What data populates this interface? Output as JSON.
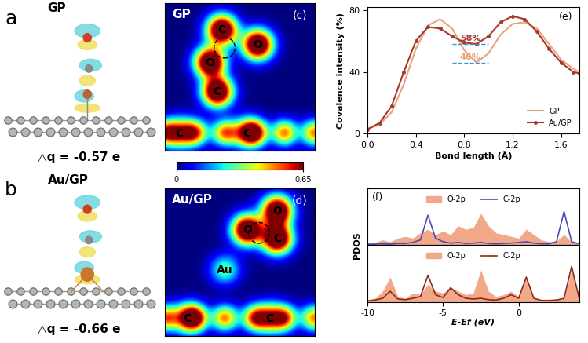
{
  "panels": {
    "a": {
      "label": "a",
      "title": "GP",
      "charge": "△q = -0.57 e"
    },
    "b": {
      "label": "b",
      "title": "Au/GP",
      "charge": "△q = -0.66 e"
    },
    "c": {
      "label": "(c)",
      "title": "GP",
      "atoms": [
        "C",
        "O",
        "O",
        "C",
        "C",
        "C"
      ]
    },
    "d": {
      "label": "(d)",
      "title": "Au/GP",
      "atoms": [
        "O",
        "O",
        "C",
        "Au",
        "C",
        "C"
      ]
    },
    "colorbar": {
      "range": [
        0,
        0.65
      ],
      "ticks": [
        0,
        0.65
      ]
    }
  },
  "chart_data": [
    {
      "panel_label": "(e)",
      "type": "line",
      "x_label": "Bond length (Å)",
      "y_label": "Covalence intensity (%)",
      "x": [
        0,
        0.1,
        0.2,
        0.3,
        0.4,
        0.5,
        0.6,
        0.7,
        0.8,
        0.9,
        1.0,
        1.1,
        1.2,
        1.3,
        1.4,
        1.5,
        1.6,
        1.7,
        1.75
      ],
      "series": [
        {
          "name": "GP",
          "color": "#e9a27c",
          "marker": "none",
          "values": [
            3,
            6,
            14,
            32,
            55,
            70,
            74,
            68,
            54,
            46,
            52,
            64,
            71,
            72,
            68,
            58,
            48,
            42,
            40
          ]
        },
        {
          "name": "Au/GP",
          "color": "#a33a2a",
          "marker": "circle",
          "values": [
            3,
            7,
            18,
            40,
            60,
            69,
            68,
            63,
            59,
            58,
            63,
            72,
            76,
            74,
            66,
            55,
            46,
            40,
            39
          ]
        }
      ],
      "annotations": [
        {
          "text": "58%",
          "value": 58
        },
        {
          "text": "46%",
          "value": 46
        }
      ],
      "xlim": [
        0,
        1.75
      ],
      "ylim": [
        0,
        82
      ],
      "xticks": [
        0.0,
        0.4,
        0.8,
        1.2,
        1.6
      ],
      "yticks": [
        0,
        40,
        80
      ],
      "legend": "lower right"
    },
    {
      "panel_label": "(f)",
      "type": "line",
      "x_label": "E-Ef (eV)",
      "y_label": "PDOS",
      "x": [
        -10,
        -9.5,
        -9,
        -8.5,
        -8,
        -7.5,
        -7,
        -6.5,
        -6,
        -5.5,
        -5,
        -4.5,
        -4,
        -3.5,
        -3,
        -2.5,
        -2,
        -1.5,
        -1,
        -0.5,
        0,
        0.5,
        1,
        1.5,
        2,
        2.5,
        3,
        3.5,
        4
      ],
      "xlim": [
        -10,
        4
      ],
      "xticks": [
        -10,
        -5,
        0
      ],
      "ylim": [
        0,
        1.6
      ],
      "tick_labels": "x",
      "legend": "upper center",
      "subplots": [
        {
          "series": [
            {
              "name": "O-2p",
              "type": "area",
              "color": "#f2a98a",
              "values": [
                0.05,
                0.08,
                0.15,
                0.1,
                0.2,
                0.25,
                0.2,
                0.35,
                0.45,
                0.3,
                0.4,
                0.3,
                0.55,
                0.45,
                0.5,
                0.9,
                0.55,
                0.35,
                0.3,
                0.25,
                0.2,
                0.45,
                0.3,
                0.15,
                0.1,
                0.12,
                0.3,
                0.1,
                0.05
              ]
            },
            {
              "name": "C-2p",
              "type": "line",
              "color": "#4a4ab5",
              "values": [
                0.03,
                0.03,
                0.04,
                0.03,
                0.05,
                0.05,
                0.08,
                0.15,
                0.85,
                0.2,
                0.1,
                0.06,
                0.08,
                0.05,
                0.06,
                0.08,
                0.05,
                0.04,
                0.05,
                0.06,
                0.08,
                0.1,
                0.06,
                0.04,
                0.04,
                0.1,
                0.95,
                0.1,
                0.04
              ]
            }
          ]
        },
        {
          "series": [
            {
              "name": "O-2p",
              "type": "area",
              "color": "#f2a98a",
              "values": [
                0.05,
                0.1,
                0.3,
                0.7,
                0.15,
                0.1,
                0.25,
                0.2,
                0.5,
                0.3,
                0.25,
                0.4,
                0.3,
                0.2,
                0.25,
                0.9,
                0.3,
                0.15,
                0.2,
                0.3,
                0.15,
                0.7,
                0.1,
                0.05,
                0.05,
                0.08,
                0.1,
                0.9,
                0.05
              ]
            },
            {
              "name": "C-2p",
              "type": "line",
              "color": "#8b2a1a",
              "values": [
                0.03,
                0.05,
                0.1,
                0.3,
                0.08,
                0.06,
                0.1,
                0.15,
                0.75,
                0.2,
                0.12,
                0.4,
                0.2,
                0.1,
                0.08,
                0.1,
                0.06,
                0.05,
                0.1,
                0.2,
                0.1,
                0.7,
                0.1,
                0.04,
                0.04,
                0.05,
                0.1,
                1.0,
                0.1
              ]
            }
          ]
        }
      ]
    }
  ]
}
